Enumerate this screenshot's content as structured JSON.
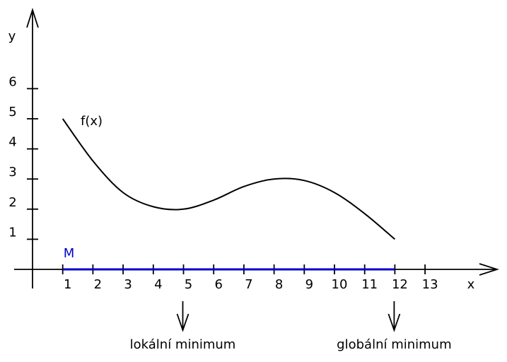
{
  "chart_data": {
    "type": "line",
    "title": "",
    "xlabel": "x",
    "ylabel": "y",
    "x_ticks": [
      "1",
      "2",
      "3",
      "4",
      "5",
      "6",
      "7",
      "8",
      "9",
      "10",
      "11",
      "12",
      "13"
    ],
    "y_ticks": [
      "1",
      "2",
      "3",
      "4",
      "5",
      "6"
    ],
    "series": [
      {
        "name": "f(x)",
        "x": [
          1,
          2,
          3,
          4,
          5,
          6,
          7,
          8,
          9,
          10,
          11,
          12
        ],
        "y": [
          5.0,
          3.6,
          2.55,
          2.08,
          2.0,
          2.3,
          2.75,
          3.0,
          2.95,
          2.55,
          1.85,
          1.0
        ]
      }
    ],
    "interval": {
      "label": "M",
      "from": 1,
      "to": 12
    },
    "annotations": [
      {
        "x": 5,
        "label": "lokální minimum"
      },
      {
        "x": 12,
        "label": "globální minimum"
      }
    ],
    "colors": {
      "axis": "#000000",
      "curve": "#000000",
      "interval": "#0000cc"
    }
  }
}
